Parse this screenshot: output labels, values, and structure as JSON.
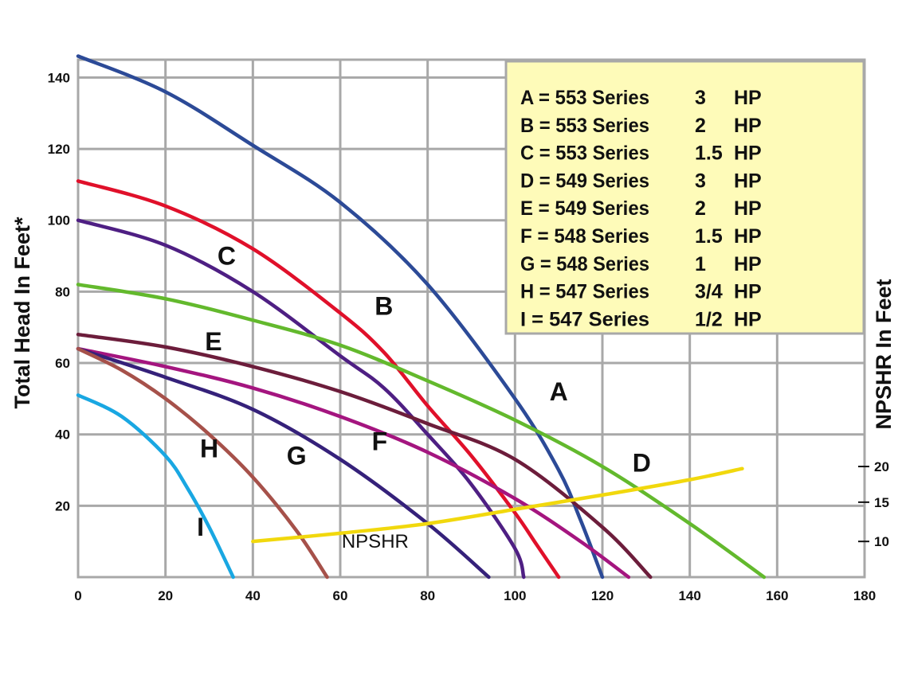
{
  "chart_data": {
    "type": "line",
    "xlabel": "",
    "ylabel": "Total Head In Feet*",
    "y2label": "NPSHR In Feet",
    "xlim": [
      0,
      180
    ],
    "ylim": [
      0,
      145
    ],
    "x_ticks": [
      "0",
      "20",
      "40",
      "60",
      "80",
      "100",
      "120",
      "140",
      "160",
      "180"
    ],
    "y_ticks": [
      "20",
      "40",
      "60",
      "80",
      "100",
      "120",
      "140"
    ],
    "y2_ticks": [
      "10",
      "15",
      "20"
    ],
    "grid": true,
    "legend_position": "top-right",
    "legend": [
      {
        "key": "A",
        "series": "553 Series",
        "hp": "3",
        "unit": "HP"
      },
      {
        "key": "B",
        "series": "553 Series",
        "hp": "2",
        "unit": "HP"
      },
      {
        "key": "C",
        "series": "553 Series",
        "hp": "1.5",
        "unit": "HP"
      },
      {
        "key": "D",
        "series": "549 Series",
        "hp": "3",
        "unit": "HP"
      },
      {
        "key": "E",
        "series": "549 Series",
        "hp": "2",
        "unit": "HP"
      },
      {
        "key": "F",
        "series": "548 Series",
        "hp": "1.5",
        "unit": "HP"
      },
      {
        "key": "G",
        "series": "548 Series",
        "hp": "1",
        "unit": "HP"
      },
      {
        "key": "H",
        "series": "547 Series",
        "hp": "3/4",
        "unit": "HP"
      },
      {
        "key": "I",
        "series": "547 Series",
        "hp": "1/2",
        "unit": "HP"
      }
    ],
    "series": [
      {
        "name": "A",
        "color": "#2c4a97",
        "label_at": [
          110,
          52
        ],
        "points": [
          [
            0,
            146
          ],
          [
            20,
            136
          ],
          [
            40,
            121
          ],
          [
            60,
            105
          ],
          [
            80,
            82
          ],
          [
            100,
            50
          ],
          [
            110,
            30
          ],
          [
            115,
            16
          ],
          [
            120,
            0
          ]
        ]
      },
      {
        "name": "B",
        "color": "#e0102a",
        "label_at": [
          70,
          76
        ],
        "points": [
          [
            0,
            111
          ],
          [
            20,
            104
          ],
          [
            40,
            92
          ],
          [
            60,
            74
          ],
          [
            70,
            63
          ],
          [
            80,
            48
          ],
          [
            90,
            34
          ],
          [
            100,
            18
          ],
          [
            105,
            9
          ],
          [
            110,
            0
          ]
        ]
      },
      {
        "name": "C",
        "color": "#4e1f83",
        "label_at": [
          34,
          90
        ],
        "points": [
          [
            0,
            100
          ],
          [
            20,
            93
          ],
          [
            40,
            80
          ],
          [
            60,
            62
          ],
          [
            70,
            53
          ],
          [
            80,
            40
          ],
          [
            90,
            26
          ],
          [
            100,
            8
          ],
          [
            102,
            0
          ]
        ]
      },
      {
        "name": "D",
        "color": "#63b92d",
        "label_at": [
          129,
          32
        ],
        "points": [
          [
            0,
            82
          ],
          [
            20,
            78
          ],
          [
            40,
            72
          ],
          [
            60,
            65
          ],
          [
            80,
            55
          ],
          [
            100,
            44
          ],
          [
            120,
            31
          ],
          [
            140,
            15
          ],
          [
            157,
            0
          ]
        ]
      },
      {
        "name": "E",
        "color": "#6c1d3b",
        "label_at": [
          31,
          66
        ],
        "points": [
          [
            0,
            68
          ],
          [
            20,
            64.5
          ],
          [
            40,
            59
          ],
          [
            60,
            52
          ],
          [
            80,
            43
          ],
          [
            100,
            33
          ],
          [
            120,
            14
          ],
          [
            131,
            0
          ]
        ]
      },
      {
        "name": "F",
        "color": "#a4157f",
        "label_at": [
          69,
          38
        ],
        "points": [
          [
            0,
            64
          ],
          [
            20,
            59
          ],
          [
            40,
            53
          ],
          [
            60,
            45
          ],
          [
            80,
            35
          ],
          [
            100,
            22
          ],
          [
            115,
            10
          ],
          [
            126,
            0
          ]
        ]
      },
      {
        "name": "G",
        "color": "#35217a",
        "label_at": [
          50,
          34
        ],
        "points": [
          [
            0,
            64
          ],
          [
            20,
            56
          ],
          [
            40,
            47
          ],
          [
            60,
            33
          ],
          [
            80,
            15
          ],
          [
            94,
            0
          ]
        ]
      },
      {
        "name": "H",
        "color": "#a6514a",
        "label_at": [
          30,
          36
        ],
        "points": [
          [
            0,
            64
          ],
          [
            10,
            58
          ],
          [
            20,
            50
          ],
          [
            30,
            40
          ],
          [
            40,
            28
          ],
          [
            50,
            13
          ],
          [
            57,
            0
          ]
        ]
      },
      {
        "name": "I",
        "color": "#19a7e2",
        "label_at": [
          28,
          14
        ],
        "points": [
          [
            0,
            51
          ],
          [
            10,
            45
          ],
          [
            20,
            34
          ],
          [
            25,
            25
          ],
          [
            30,
            14
          ],
          [
            35.5,
            0
          ]
        ]
      },
      {
        "name": "NPSHR",
        "color": "#f1d80d",
        "label_at": [
          68,
          10
        ],
        "points": [
          [
            40,
            10
          ],
          [
            60,
            12.3
          ],
          [
            80,
            15
          ],
          [
            100,
            19
          ],
          [
            120,
            23
          ],
          [
            140,
            27.3
          ],
          [
            152,
            30.4
          ]
        ]
      }
    ]
  }
}
